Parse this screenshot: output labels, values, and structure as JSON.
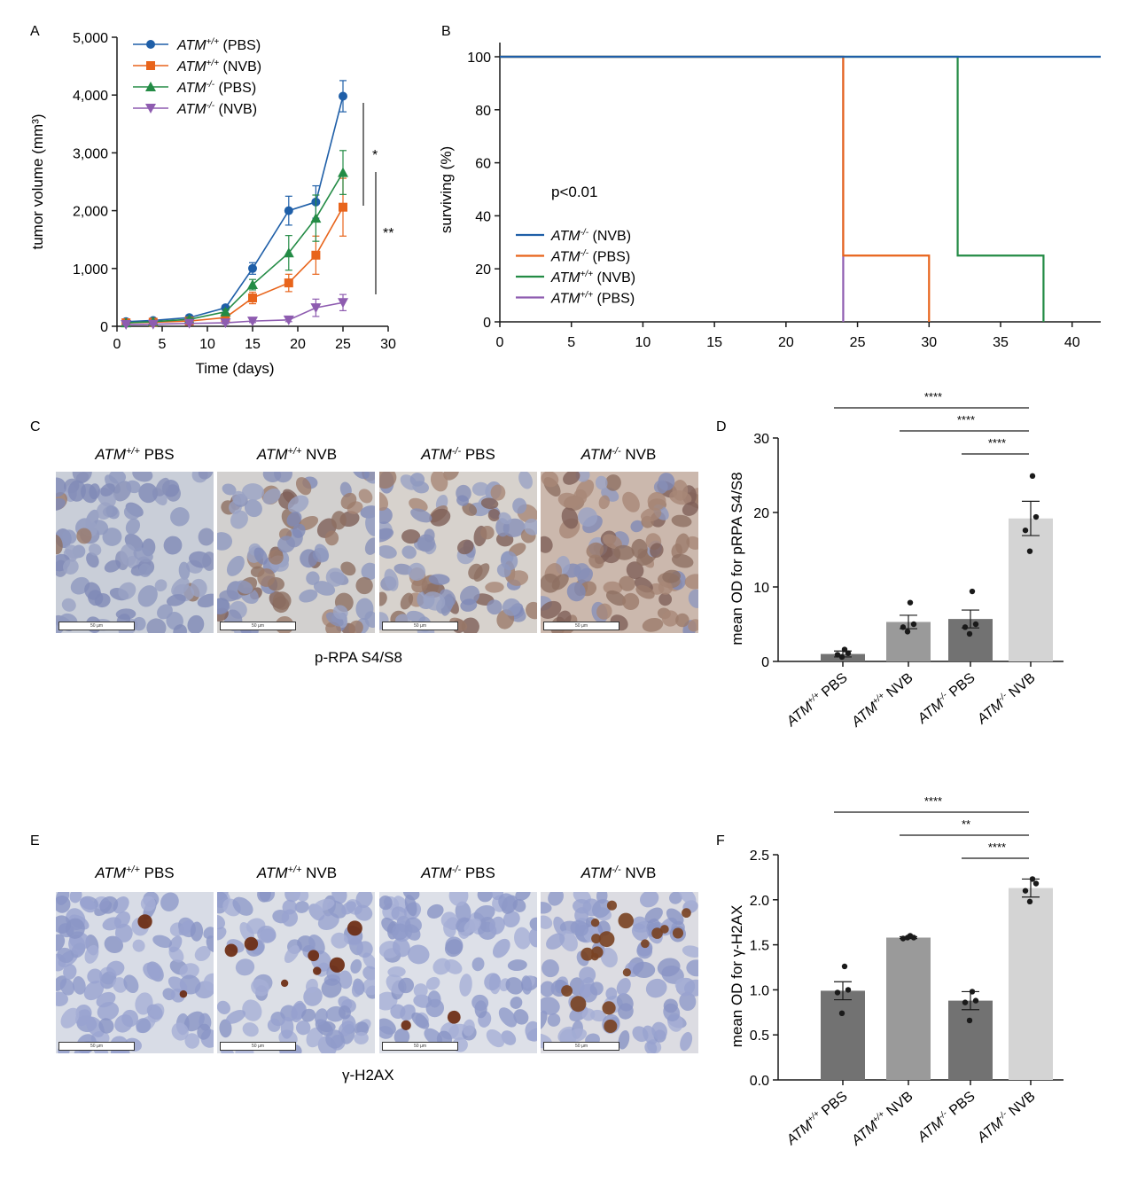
{
  "colors": {
    "blue": "#1f5fa8",
    "orange": "#e8641b",
    "green": "#238b45",
    "purple": "#8e5cb0",
    "bar_dark": "#727272",
    "bar_mid": "#9a9a9a",
    "bar_light": "#d4d4d4",
    "axis": "#1a1a1a"
  },
  "panel_labels": {
    "a": "A",
    "b": "B",
    "c": "C",
    "d": "D",
    "e": "E",
    "f": "F"
  },
  "chart_data": [
    {
      "id": "A",
      "type": "line",
      "xlabel": "Time (days)",
      "ylabel": "tumor volume (mm³)",
      "xlim": [
        0,
        30
      ],
      "ylim": [
        0,
        5000
      ],
      "xticks": [
        "0",
        "5",
        "10",
        "15",
        "20",
        "25",
        "30"
      ],
      "yticks": [
        "0",
        "1,000",
        "2,000",
        "3,000",
        "4,000",
        "5,000"
      ],
      "x": [
        1,
        4,
        8,
        12,
        15,
        19,
        22,
        25
      ],
      "series": [
        {
          "sup_text": "ATM+/+ (PBS)",
          "name": "ATM",
          "sup": "+/+",
          "tail": " (PBS)",
          "color": "blue",
          "marker": "circle",
          "values": [
            80,
            100,
            150,
            320,
            1000,
            2000,
            2150,
            3980
          ],
          "errors": [
            20,
            20,
            30,
            40,
            100,
            250,
            280,
            270
          ]
        },
        {
          "sup_text": "ATM+/+ (NVB)",
          "name": "ATM",
          "sup": "+/+",
          "tail": " (NVB)",
          "color": "orange",
          "marker": "square",
          "values": [
            60,
            70,
            90,
            150,
            490,
            750,
            1230,
            2060
          ],
          "errors": [
            15,
            15,
            20,
            40,
            100,
            150,
            330,
            500
          ]
        },
        {
          "sup_text": "ATM-/- (PBS)",
          "name": "ATM",
          "sup": "-/-",
          "tail": " (PBS)",
          "color": "green",
          "marker": "triangle-up",
          "values": [
            60,
            80,
            120,
            250,
            720,
            1270,
            1870,
            2660
          ],
          "errors": [
            15,
            15,
            25,
            40,
            90,
            300,
            400,
            380
          ]
        },
        {
          "sup_text": "ATM-/- (NVB)",
          "name": "ATM",
          "sup": "-/-",
          "tail": " (NVB)",
          "color": "purple",
          "marker": "triangle-down",
          "values": [
            30,
            35,
            50,
            60,
            90,
            110,
            320,
            410
          ],
          "errors": [
            10,
            10,
            15,
            20,
            25,
            30,
            150,
            140
          ]
        }
      ],
      "annotations": [
        "*",
        "**"
      ]
    },
    {
      "id": "B",
      "type": "line",
      "ylabel": "surviving (%)",
      "xlim": [
        0,
        42
      ],
      "ylim": [
        0,
        100
      ],
      "xticks": [
        "0",
        "5",
        "10",
        "15",
        "20",
        "25",
        "30",
        "35",
        "40"
      ],
      "yticks": [
        "0",
        "20",
        "40",
        "60",
        "80",
        "100"
      ],
      "pvalue": "p<0.01",
      "series": [
        {
          "sup_text": "ATM-/- (NVB)",
          "name": "ATM",
          "sup": "-/-",
          "tail": " (NVB)",
          "color": "blue",
          "x": [
            0,
            42
          ],
          "y": [
            100,
            100
          ]
        },
        {
          "sup_text": "ATM-/- (PBS)",
          "name": "ATM",
          "sup": "-/-",
          "tail": " (PBS)",
          "color": "orange",
          "x": [
            0,
            24,
            24,
            30,
            30
          ],
          "y": [
            100,
            100,
            25,
            25,
            0
          ]
        },
        {
          "sup_text": "ATM+/+ (NVB)",
          "name": "ATM",
          "sup": "+/+",
          "tail": " (NVB)",
          "color": "green",
          "x": [
            0,
            32,
            32,
            38,
            38
          ],
          "y": [
            100,
            100,
            25,
            25,
            0
          ]
        },
        {
          "sup_text": "ATM+/+ (PBS)",
          "name": "ATM",
          "sup": "+/+",
          "tail": " (PBS)",
          "color": "purple",
          "x": [
            0,
            24,
            24
          ],
          "y": [
            100,
            100,
            0
          ]
        }
      ]
    },
    {
      "id": "D",
      "type": "bar",
      "ylabel": "mean OD for pRPA S4/S8",
      "ylim": [
        0,
        30
      ],
      "yticks": [
        "0",
        "10",
        "20",
        "30"
      ],
      "categories": [
        "ATM+/+ PBS",
        "ATM+/+ NVB",
        "ATM-/- PBS",
        "ATM-/- NVB"
      ],
      "cat_sup": [
        "+/+",
        "+/+",
        "-/-",
        "-/-"
      ],
      "cat_tail": [
        " PBS",
        " NVB",
        " PBS",
        " NVB"
      ],
      "bar_colors": [
        "bar_dark",
        "bar_mid",
        "bar_dark",
        "bar_light"
      ],
      "values": [
        1.0,
        5.3,
        5.7,
        19.2
      ],
      "errors": [
        0.4,
        0.9,
        1.2,
        2.3
      ],
      "points": [
        [
          1.6,
          1.1,
          0.9,
          0.6
        ],
        [
          7.9,
          5.0,
          4.6,
          4.0
        ],
        [
          9.4,
          5.0,
          4.6,
          3.7
        ],
        [
          24.9,
          19.4,
          17.6,
          14.8
        ]
      ],
      "significance": [
        {
          "from": 0,
          "to": 3,
          "label": "****"
        },
        {
          "from": 1,
          "to": 3,
          "label": "****"
        },
        {
          "from": 2,
          "to": 3,
          "label": "****"
        }
      ]
    },
    {
      "id": "F",
      "type": "bar",
      "ylabel": "mean OD for γ-H2AX",
      "ylim": [
        0,
        2.5
      ],
      "yticks": [
        "0.0",
        "0.5",
        "1.0",
        "1.5",
        "2.0",
        "2.5"
      ],
      "categories": [
        "ATM+/+ PBS",
        "ATM+/+ NVB",
        "ATM-/- PBS",
        "ATM-/- NVB"
      ],
      "cat_sup": [
        "+/+",
        "+/+",
        "-/-",
        "-/-"
      ],
      "cat_tail": [
        " PBS",
        " NVB",
        " PBS",
        " NVB"
      ],
      "bar_colors": [
        "bar_dark",
        "bar_mid",
        "bar_dark",
        "bar_light"
      ],
      "values": [
        0.99,
        1.58,
        0.88,
        2.13
      ],
      "errors": [
        0.1,
        0.01,
        0.1,
        0.1
      ],
      "points": [
        [
          1.26,
          1.0,
          0.97,
          0.74
        ],
        [
          1.6,
          1.58,
          1.57,
          1.58
        ],
        [
          0.98,
          0.88,
          0.86,
          0.66
        ],
        [
          2.23,
          2.18,
          2.1,
          1.98
        ]
      ],
      "significance": [
        {
          "from": 0,
          "to": 3,
          "label": "****"
        },
        {
          "from": 1,
          "to": 3,
          "label": "**"
        },
        {
          "from": 2,
          "to": 3,
          "label": "****"
        }
      ]
    }
  ],
  "ihc": {
    "headers": [
      {
        "name": "ATM",
        "sup": "+/+",
        "tail": " PBS"
      },
      {
        "name": "ATM",
        "sup": "+/+",
        "tail": " NVB"
      },
      {
        "name": "ATM",
        "sup": "-/-",
        "tail": " PBS"
      },
      {
        "name": "ATM",
        "sup": "-/-",
        "tail": " NVB"
      }
    ],
    "scale_label": "50 µm",
    "c_caption": "p-RPA S4/S8",
    "e_caption": "γ-H2AX"
  }
}
